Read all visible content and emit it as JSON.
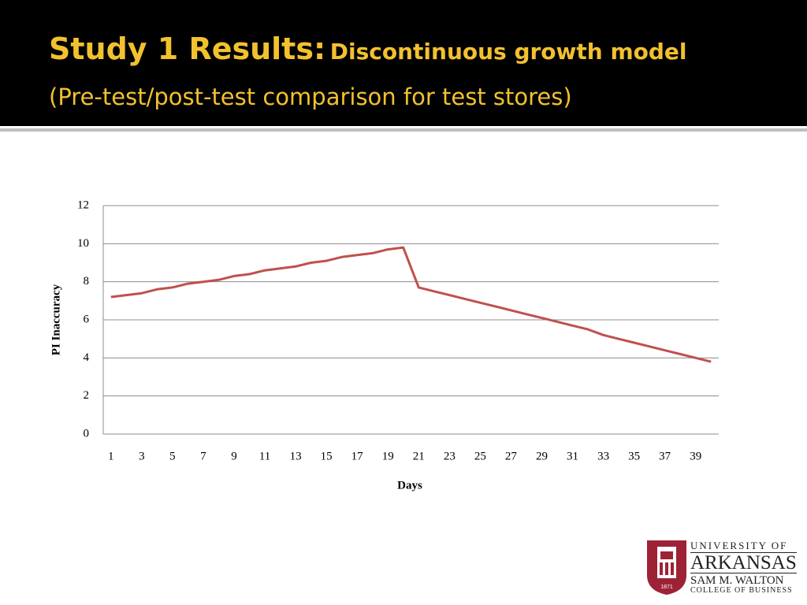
{
  "slide": {
    "title_main": "Study 1 Results:",
    "title_rest": "Discontinuous growth model",
    "subtitle": "(Pre-test/post-test comparison for test stores)"
  },
  "logo": {
    "line1": "UNIVERSITY OF",
    "line2": "ARKANSAS",
    "line3": "SAM M. WALTON",
    "line4": "COLLEGE OF BUSINESS",
    "year": "1871"
  },
  "chart_data": {
    "type": "line",
    "x_label": "Days",
    "y_label": "PI Inaccuracy",
    "categories": [
      1,
      null,
      3,
      null,
      5,
      null,
      7,
      null,
      9,
      null,
      11,
      null,
      13,
      null,
      15,
      null,
      17,
      null,
      19,
      null,
      21,
      null,
      23,
      null,
      25,
      null,
      27,
      null,
      29,
      null,
      31,
      null,
      33,
      null,
      35,
      null,
      37,
      null,
      39,
      null
    ],
    "series": [
      {
        "name": "PI Inaccuracy",
        "color": "#c0504d",
        "values": [
          7.2,
          7.3,
          7.4,
          7.6,
          7.7,
          7.9,
          8.0,
          8.1,
          8.3,
          8.4,
          8.6,
          8.7,
          8.8,
          9.0,
          9.1,
          9.3,
          9.4,
          9.5,
          9.7,
          9.8,
          7.7,
          7.5,
          7.3,
          7.1,
          6.9,
          6.7,
          6.5,
          6.3,
          6.1,
          5.9,
          5.7,
          5.5,
          5.2,
          5.0,
          4.8,
          4.6,
          4.4,
          4.2,
          4.0,
          3.8
        ]
      }
    ],
    "ylim": [
      0,
      12
    ],
    "yticks": [
      0,
      2,
      4,
      6,
      8,
      10,
      12
    ],
    "grid": true
  }
}
